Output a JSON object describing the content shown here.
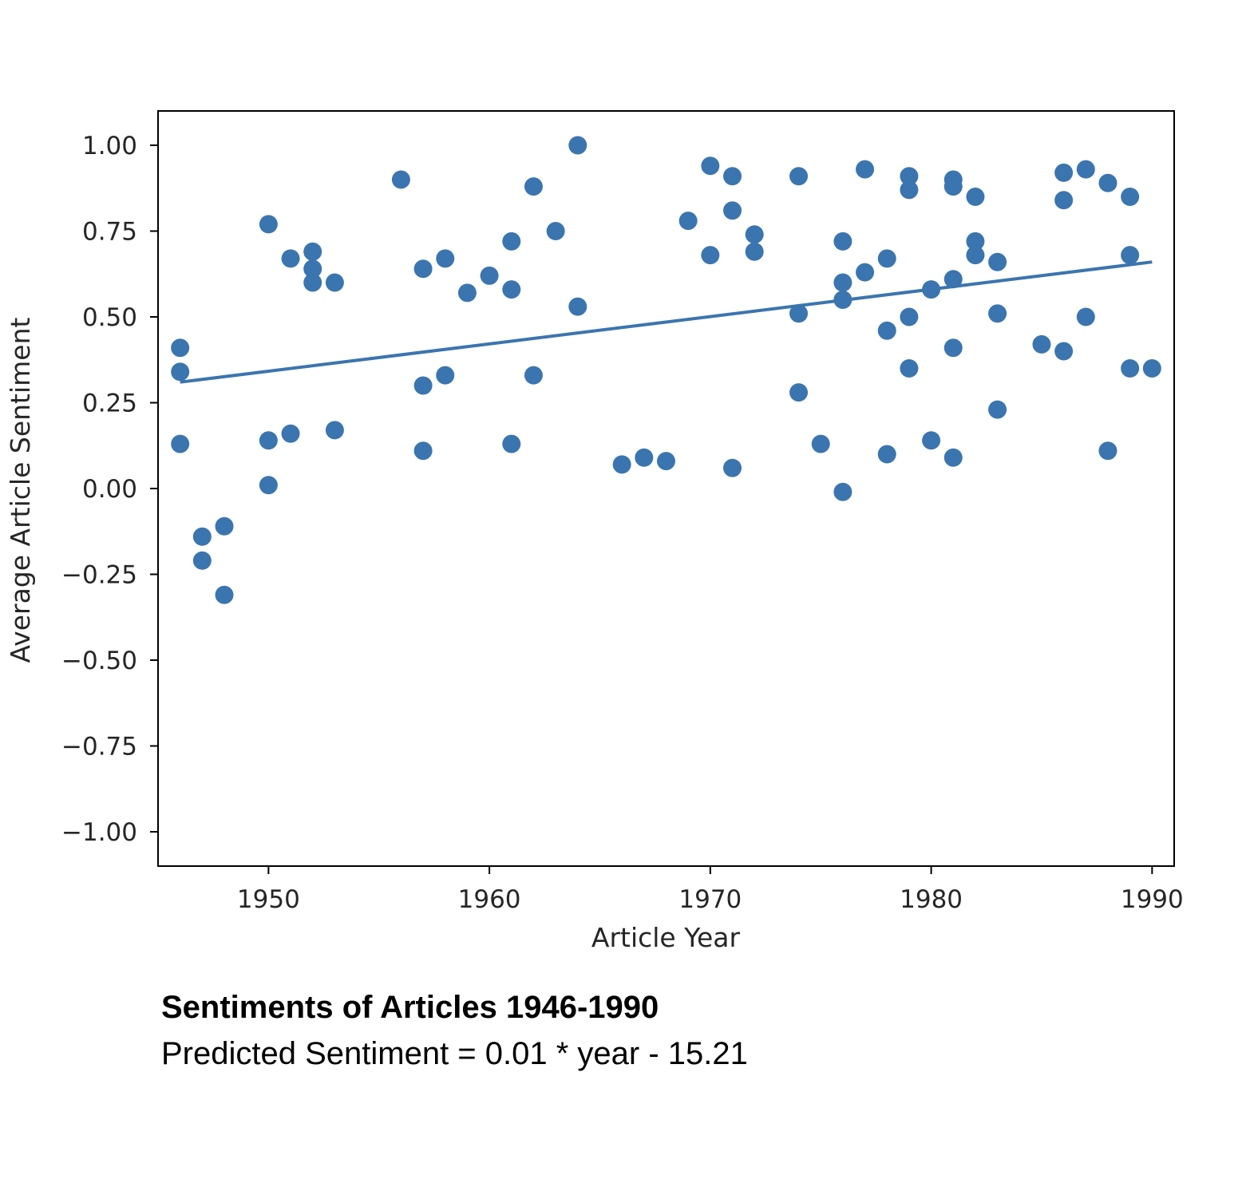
{
  "caption": {
    "title": "Sentiments of Articles 1946-1990",
    "subtitle": "Predicted Sentiment = 0.01 * year - 15.21"
  },
  "chart_data": {
    "type": "scatter",
    "xlabel": "Article Year",
    "ylabel": "Average Article Sentiment",
    "xlim": [
      1945,
      1991
    ],
    "ylim": [
      -1.1,
      1.1
    ],
    "xticks": [
      1950,
      1960,
      1970,
      1980,
      1990
    ],
    "yticks": [
      1.0,
      0.75,
      0.5,
      0.25,
      0.0,
      -0.25,
      -0.5,
      -0.75,
      -1.0
    ],
    "ytick_labels": [
      "1.00",
      "0.75",
      "0.50",
      "0.25",
      "0.00",
      "−0.25",
      "−0.50",
      "−0.75",
      "−1.00"
    ],
    "grid": false,
    "color": "#3b75af",
    "trendline": {
      "x": [
        1946,
        1990
      ],
      "y": [
        0.31,
        0.66
      ]
    },
    "points": [
      [
        1946,
        0.41
      ],
      [
        1946,
        0.34
      ],
      [
        1946,
        0.13
      ],
      [
        1947,
        -0.14
      ],
      [
        1947,
        -0.21
      ],
      [
        1948,
        -0.11
      ],
      [
        1948,
        -0.31
      ],
      [
        1950,
        0.77
      ],
      [
        1950,
        0.14
      ],
      [
        1950,
        0.01
      ],
      [
        1951,
        0.67
      ],
      [
        1951,
        0.16
      ],
      [
        1952,
        0.69
      ],
      [
        1952,
        0.64
      ],
      [
        1952,
        0.6
      ],
      [
        1953,
        0.6
      ],
      [
        1953,
        0.17
      ],
      [
        1956,
        0.9
      ],
      [
        1957,
        0.64
      ],
      [
        1957,
        0.3
      ],
      [
        1957,
        0.11
      ],
      [
        1958,
        0.67
      ],
      [
        1958,
        0.33
      ],
      [
        1959,
        0.57
      ],
      [
        1960,
        0.62
      ],
      [
        1961,
        0.72
      ],
      [
        1961,
        0.58
      ],
      [
        1961,
        0.13
      ],
      [
        1962,
        0.88
      ],
      [
        1962,
        0.33
      ],
      [
        1963,
        0.75
      ],
      [
        1964,
        1.0
      ],
      [
        1964,
        0.53
      ],
      [
        1966,
        0.07
      ],
      [
        1967,
        0.09
      ],
      [
        1968,
        0.08
      ],
      [
        1969,
        0.78
      ],
      [
        1970,
        0.94
      ],
      [
        1970,
        0.68
      ],
      [
        1971,
        0.91
      ],
      [
        1971,
        0.81
      ],
      [
        1971,
        0.06
      ],
      [
        1972,
        0.74
      ],
      [
        1972,
        0.69
      ],
      [
        1974,
        0.91
      ],
      [
        1974,
        0.51
      ],
      [
        1974,
        0.28
      ],
      [
        1975,
        0.13
      ],
      [
        1976,
        0.72
      ],
      [
        1976,
        0.6
      ],
      [
        1976,
        0.55
      ],
      [
        1976,
        -0.01
      ],
      [
        1977,
        0.93
      ],
      [
        1977,
        0.63
      ],
      [
        1978,
        0.67
      ],
      [
        1978,
        0.46
      ],
      [
        1978,
        0.1
      ],
      [
        1979,
        0.91
      ],
      [
        1979,
        0.87
      ],
      [
        1979,
        0.5
      ],
      [
        1979,
        0.35
      ],
      [
        1980,
        0.58
      ],
      [
        1980,
        0.14
      ],
      [
        1981,
        0.9
      ],
      [
        1981,
        0.88
      ],
      [
        1981,
        0.61
      ],
      [
        1981,
        0.41
      ],
      [
        1981,
        0.09
      ],
      [
        1982,
        0.85
      ],
      [
        1982,
        0.72
      ],
      [
        1982,
        0.68
      ],
      [
        1983,
        0.66
      ],
      [
        1983,
        0.51
      ],
      [
        1983,
        0.23
      ],
      [
        1985,
        0.42
      ],
      [
        1986,
        0.92
      ],
      [
        1986,
        0.84
      ],
      [
        1986,
        0.4
      ],
      [
        1987,
        0.93
      ],
      [
        1987,
        0.5
      ],
      [
        1988,
        0.89
      ],
      [
        1988,
        0.11
      ],
      [
        1989,
        0.85
      ],
      [
        1989,
        0.68
      ],
      [
        1989,
        0.35
      ],
      [
        1990,
        0.35
      ]
    ]
  }
}
